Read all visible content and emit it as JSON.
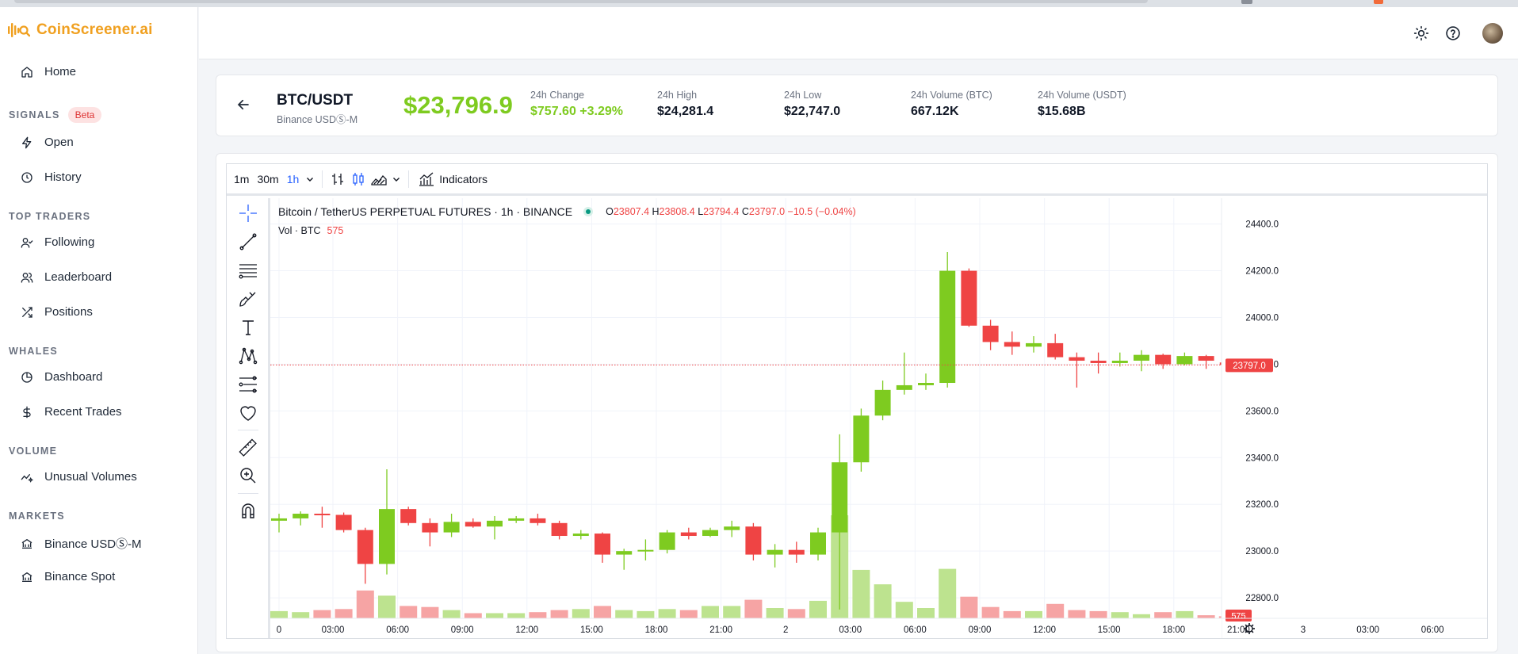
{
  "app": {
    "name": "CoinScreener.ai"
  },
  "sidebar": {
    "home": "Home",
    "sections": [
      {
        "label": "SIGNALS",
        "badge": "Beta",
        "items": [
          "Open",
          "History"
        ]
      },
      {
        "label": "TOP TRADERS",
        "items": [
          "Following",
          "Leaderboard",
          "Positions"
        ]
      },
      {
        "label": "WHALES",
        "items": [
          "Dashboard",
          "Recent Trades"
        ]
      },
      {
        "label": "VOLUME",
        "items": [
          "Unusual Volumes"
        ]
      },
      {
        "label": "MARKETS",
        "items": [
          "Binance USDⓈ-M",
          "Binance Spot"
        ]
      }
    ]
  },
  "ticker": {
    "pair": "BTC/USDT",
    "exchange": "Binance USDⓈ-M",
    "price": "$23,796.9",
    "stats": [
      {
        "label": "24h Change",
        "value": "$757.60 +3.29%",
        "color": "#7ecb20"
      },
      {
        "label": "24h High",
        "value": "$24,281.4"
      },
      {
        "label": "24h Low",
        "value": "$22,747.0"
      },
      {
        "label": "24h Volume (BTC)",
        "value": "667.12K"
      },
      {
        "label": "24h Volume (USDT)",
        "value": "$15.68B"
      }
    ]
  },
  "toolbar": {
    "timeframes": [
      "1m",
      "30m",
      "1h"
    ],
    "active_timeframe": "1h",
    "indicators_label": "Indicators"
  },
  "legend": {
    "title": "Bitcoin / TetherUS PERPETUAL FUTURES · 1h · BINANCE",
    "o_label": "O",
    "o": "23807.4",
    "h_label": "H",
    "h": "23808.4",
    "l_label": "L",
    "l": "23794.4",
    "c_label": "C",
    "c": "23797.0",
    "change": "−10.5 (−0.04%)",
    "volume_label": "Vol · BTC",
    "volume_value": "575"
  },
  "chart_data": {
    "type": "candlestick",
    "colors": {
      "up": "#7ecb20",
      "down": "#ef4444",
      "vol_up": "#bde38f",
      "vol_down": "#f6a4a4"
    },
    "y_ticks": [
      24400,
      24200,
      24000,
      23800,
      23600,
      23400,
      23200,
      23000,
      22800
    ],
    "ylim": [
      22780,
      24470
    ],
    "last_price_label": "23797.0",
    "last_price": 23797,
    "volume_label": "575",
    "x_tick_labels": [
      {
        "i": 0,
        "t": "0"
      },
      {
        "i": 2.5,
        "t": "03:00"
      },
      {
        "i": 5.5,
        "t": "06:00"
      },
      {
        "i": 8.5,
        "t": "09:00"
      },
      {
        "i": 11.5,
        "t": "12:00"
      },
      {
        "i": 14.5,
        "t": "15:00"
      },
      {
        "i": 17.5,
        "t": "18:00"
      },
      {
        "i": 20.5,
        "t": "21:00"
      },
      {
        "i": 23.5,
        "t": "2"
      },
      {
        "i": 26.5,
        "t": "03:00"
      },
      {
        "i": 29.5,
        "t": "06:00"
      },
      {
        "i": 32.5,
        "t": "09:00"
      },
      {
        "i": 35.5,
        "t": "12:00"
      },
      {
        "i": 38.5,
        "t": "15:00"
      },
      {
        "i": 41.5,
        "t": "18:00"
      },
      {
        "i": 44.5,
        "t": "21:00"
      },
      {
        "i": 47.5,
        "t": "3"
      },
      {
        "i": 50.5,
        "t": "03:00"
      },
      {
        "i": 53.5,
        "t": "06:00"
      }
    ],
    "candles": [
      {
        "o": 23130,
        "h": 23160,
        "l": 23080,
        "c": 23140
      },
      {
        "o": 23140,
        "h": 23170,
        "l": 23110,
        "c": 23160
      },
      {
        "o": 23160,
        "h": 23190,
        "l": 23100,
        "c": 23155
      },
      {
        "o": 23155,
        "h": 23165,
        "l": 23080,
        "c": 23090
      },
      {
        "o": 23090,
        "h": 23100,
        "l": 22860,
        "c": 22945
      },
      {
        "o": 22945,
        "h": 23350,
        "l": 22900,
        "c": 23180
      },
      {
        "o": 23180,
        "h": 23190,
        "l": 23110,
        "c": 23120
      },
      {
        "o": 23120,
        "h": 23140,
        "l": 23020,
        "c": 23080
      },
      {
        "o": 23080,
        "h": 23160,
        "l": 23060,
        "c": 23125
      },
      {
        "o": 23125,
        "h": 23140,
        "l": 23100,
        "c": 23105
      },
      {
        "o": 23105,
        "h": 23150,
        "l": 23050,
        "c": 23130
      },
      {
        "o": 23130,
        "h": 23150,
        "l": 23120,
        "c": 23140
      },
      {
        "o": 23140,
        "h": 23160,
        "l": 23110,
        "c": 23120
      },
      {
        "o": 23120,
        "h": 23130,
        "l": 23050,
        "c": 23065
      },
      {
        "o": 23065,
        "h": 23090,
        "l": 23050,
        "c": 23075
      },
      {
        "o": 23075,
        "h": 23080,
        "l": 22950,
        "c": 22985
      },
      {
        "o": 22985,
        "h": 23010,
        "l": 22920,
        "c": 23000
      },
      {
        "o": 23000,
        "h": 23050,
        "l": 22960,
        "c": 23005
      },
      {
        "o": 23005,
        "h": 23090,
        "l": 22990,
        "c": 23080
      },
      {
        "o": 23080,
        "h": 23100,
        "l": 23050,
        "c": 23065
      },
      {
        "o": 23065,
        "h": 23100,
        "l": 23060,
        "c": 23090
      },
      {
        "o": 23090,
        "h": 23130,
        "l": 23060,
        "c": 23105
      },
      {
        "o": 23105,
        "h": 23120,
        "l": 22960,
        "c": 22985
      },
      {
        "o": 22985,
        "h": 23030,
        "l": 22930,
        "c": 23005
      },
      {
        "o": 23005,
        "h": 23040,
        "l": 22950,
        "c": 22985
      },
      {
        "o": 22985,
        "h": 23100,
        "l": 22960,
        "c": 23080
      },
      {
        "o": 23080,
        "h": 23500,
        "l": 22750,
        "c": 23380
      },
      {
        "o": 23380,
        "h": 23610,
        "l": 23340,
        "c": 23580
      },
      {
        "o": 23580,
        "h": 23730,
        "l": 23560,
        "c": 23690
      },
      {
        "o": 23690,
        "h": 23850,
        "l": 23670,
        "c": 23710
      },
      {
        "o": 23710,
        "h": 23760,
        "l": 23690,
        "c": 23720
      },
      {
        "o": 23720,
        "h": 24280,
        "l": 23700,
        "c": 24200
      },
      {
        "o": 24200,
        "h": 24210,
        "l": 23960,
        "c": 23965
      },
      {
        "o": 23965,
        "h": 23990,
        "l": 23860,
        "c": 23895
      },
      {
        "o": 23895,
        "h": 23940,
        "l": 23840,
        "c": 23875
      },
      {
        "o": 23875,
        "h": 23920,
        "l": 23850,
        "c": 23890
      },
      {
        "o": 23890,
        "h": 23930,
        "l": 23820,
        "c": 23830
      },
      {
        "o": 23830,
        "h": 23850,
        "l": 23700,
        "c": 23815
      },
      {
        "o": 23815,
        "h": 23850,
        "l": 23760,
        "c": 23805
      },
      {
        "o": 23805,
        "h": 23850,
        "l": 23790,
        "c": 23815
      },
      {
        "o": 23815,
        "h": 23860,
        "l": 23770,
        "c": 23840
      },
      {
        "o": 23840,
        "h": 23845,
        "l": 23780,
        "c": 23800
      },
      {
        "o": 23800,
        "h": 23850,
        "l": 23795,
        "c": 23835
      },
      {
        "o": 23835,
        "h": 23840,
        "l": 23780,
        "c": 23815
      },
      {
        "o": 23807.4,
        "h": 23808.4,
        "l": 23794.4,
        "c": 23797
      }
    ],
    "volumes": [
      7,
      6,
      8,
      9,
      27,
      22,
      12,
      11,
      8,
      5,
      5,
      5,
      6,
      8,
      9,
      12,
      8,
      7,
      9,
      8,
      12,
      12,
      18,
      10,
      9,
      17,
      100,
      47,
      33,
      16,
      10,
      48,
      21,
      11,
      7,
      7,
      14,
      8,
      7,
      6,
      4,
      6,
      7,
      3,
      2
    ]
  }
}
